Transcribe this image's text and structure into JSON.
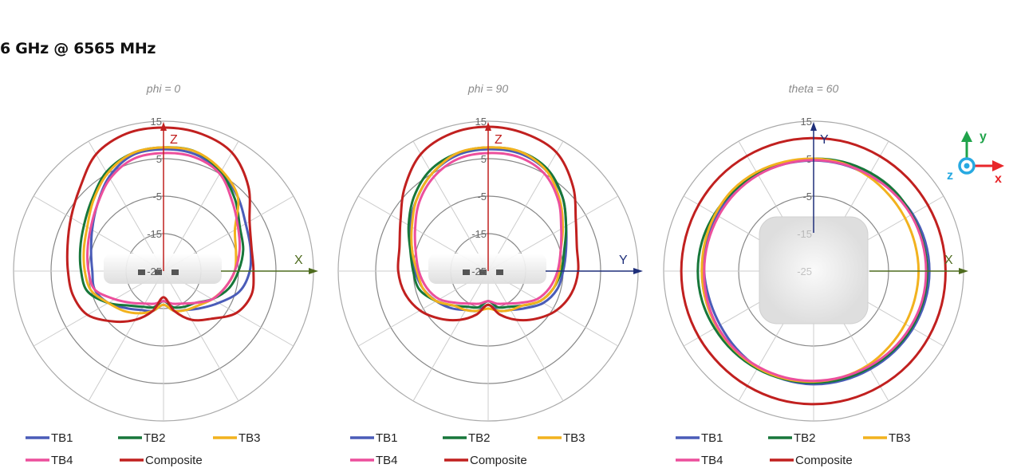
{
  "title": "6 GHz @ 6565 MHz",
  "colors": {
    "TB1": "#4a5cb8",
    "TB2": "#17773a",
    "TB3": "#f2b21e",
    "TB4": "#ec4f9c",
    "Composite": "#c1201f"
  },
  "axes_icon": {
    "labels": [
      "y",
      "x",
      "z"
    ],
    "colors": {
      "y": "#1fa34a",
      "x": "#e8262a",
      "z": "#27a9e1"
    }
  },
  "chart_data": [
    {
      "type": "polar-line",
      "title": "phi = 0",
      "radial_ticks": [
        "15",
        "5",
        "-5",
        "-15",
        "-25"
      ],
      "rlim": [
        -25,
        15
      ],
      "angle_step_deg": 15,
      "angle_reference": "Z axis, clockwise",
      "axis_labels": {
        "vertical": "Z",
        "horizontal": "X"
      },
      "axis_colors": {
        "vertical": "#c1201f",
        "horizontal": "#4e6b1e"
      },
      "grid": true,
      "legend_placement": "bottom",
      "series": [
        {
          "name": "TB1",
          "values": [
            7.5,
            7.3,
            5.5,
            3,
            0.3,
            -1,
            -2,
            -4,
            -8,
            -11,
            -13,
            -14,
            -16,
            -14,
            -13,
            -11,
            -8,
            -6,
            -6,
            -5,
            -3,
            0,
            4,
            7
          ]
        },
        {
          "name": "TB2",
          "values": [
            8,
            8,
            5.5,
            2,
            -1.5,
            -3,
            -5,
            -7,
            -10,
            -13,
            -14,
            -15,
            -17,
            -15,
            -14,
            -12,
            -8,
            -4,
            -3,
            -2,
            -0.5,
            2,
            5.5,
            7.5
          ]
        },
        {
          "name": "TB3",
          "values": [
            8,
            8,
            6,
            3,
            -3,
            -5,
            -6,
            -8,
            -10,
            -12,
            -13,
            -14,
            -16,
            -14,
            -12,
            -10,
            -8,
            -5,
            -4,
            -3,
            -1.5,
            1.5,
            5,
            7.5
          ]
        },
        {
          "name": "TB4",
          "values": [
            6.5,
            6.5,
            5,
            1,
            -2,
            -4,
            -6,
            -8,
            -10,
            -13,
            -15,
            -16,
            -17,
            -16,
            -15,
            -13,
            -10,
            -6,
            -5,
            -4,
            -2.5,
            0,
            3.5,
            6
          ]
        },
        {
          "name": "Composite",
          "values": [
            13.3,
            13,
            11.5,
            7,
            1.5,
            -0.7,
            -1,
            -0.7,
            -2.6,
            -7,
            -10,
            -14,
            -18,
            -14,
            -10,
            -6,
            -1.6,
            0,
            0.5,
            1.5,
            3.5,
            6.5,
            11,
            13
          ]
        }
      ]
    },
    {
      "type": "polar-line",
      "title": "phi = 90",
      "radial_ticks": [
        "15",
        "5",
        "-5",
        "-15",
        "-25"
      ],
      "rlim": [
        -25,
        15
      ],
      "angle_step_deg": 15,
      "angle_reference": "Z axis, clockwise",
      "axis_labels": {
        "vertical": "Z",
        "horizontal": "Y"
      },
      "axis_colors": {
        "vertical": "#c1201f",
        "horizontal": "#1f2f7a"
      },
      "grid": true,
      "legend_placement": "bottom",
      "series": [
        {
          "name": "TB1",
          "values": [
            7.5,
            7.5,
            6,
            3,
            -1,
            -3.5,
            -5,
            -6,
            -8,
            -11,
            -13,
            -14,
            -16,
            -14,
            -13,
            -11,
            -9,
            -7,
            -5.5,
            -4,
            -1,
            2,
            5,
            7
          ]
        },
        {
          "name": "TB2",
          "values": [
            8,
            8,
            6.5,
            3,
            -1,
            -4,
            -5.5,
            -7,
            -9,
            -12,
            -14,
            -15,
            -17,
            -15,
            -14,
            -12,
            -9,
            -6,
            -5,
            -3.5,
            -0.5,
            3,
            6,
            7.5
          ]
        },
        {
          "name": "TB3",
          "values": [
            8,
            8,
            6,
            2,
            -2,
            -5,
            -6,
            -7,
            -9,
            -12,
            -13,
            -14,
            -15,
            -14,
            -13,
            -12,
            -9,
            -7,
            -6,
            -4,
            -1.5,
            2,
            5,
            7.5
          ]
        },
        {
          "name": "TB4",
          "values": [
            6.5,
            6.5,
            5,
            1.5,
            -2.5,
            -5,
            -6.5,
            -8,
            -10,
            -13,
            -15,
            -16,
            -17,
            -16,
            -15,
            -13,
            -10,
            -8,
            -6.5,
            -5,
            -2.5,
            1,
            4,
            6
          ]
        },
        {
          "name": "Composite",
          "values": [
            13.5,
            13,
            11.5,
            7,
            2,
            -0.5,
            -1,
            -2,
            -4,
            -7,
            -10,
            -13,
            -16,
            -13,
            -10,
            -7,
            -4,
            -2,
            -1,
            -0.5,
            2,
            6.5,
            11,
            13
          ]
        }
      ]
    },
    {
      "type": "polar-line",
      "title": "theta = 60",
      "radial_ticks": [
        "15",
        "5",
        "-5",
        "-15",
        "-25"
      ],
      "rlim": [
        -25,
        15
      ],
      "angle_step_deg": 15,
      "angle_reference": "Y axis, clockwise",
      "axis_labels": {
        "vertical": "Y",
        "horizontal": "X"
      },
      "axis_colors": {
        "vertical": "#1f2f7a",
        "horizontal": "#4e6b1e"
      },
      "grid": true,
      "legend_placement": "bottom",
      "series": [
        {
          "name": "TB1",
          "values": [
            4.5,
            4.5,
            4.5,
            5,
            5.5,
            5.8,
            5.9,
            5.8,
            5.6,
            5.4,
            5.2,
            5.2,
            5.2,
            5,
            4.7,
            4.2,
            3.8,
            3.8,
            4.2,
            4.5,
            4.8,
            4.8,
            4.7,
            4.6
          ]
        },
        {
          "name": "TB2",
          "values": [
            5,
            5.2,
            5.3,
            5.4,
            5.2,
            5.2,
            5.3,
            5.3,
            5.2,
            5,
            4.8,
            4.8,
            4.8,
            4.9,
            5.1,
            5.3,
            5.5,
            5.8,
            5.9,
            5.8,
            5.5,
            5.2,
            5,
            5
          ]
        },
        {
          "name": "TB3",
          "values": [
            5,
            4.8,
            4.2,
            3.6,
            3.2,
            3,
            3,
            3,
            3.2,
            3.5,
            4,
            4.3,
            4.5,
            4.7,
            4.8,
            4.8,
            4.8,
            4.8,
            4.8,
            5,
            5.3,
            5.6,
            5.5,
            5.2
          ]
        },
        {
          "name": "TB4",
          "values": [
            4.6,
            4.6,
            4.6,
            4.8,
            5,
            5,
            5,
            5,
            4.8,
            4.6,
            4.4,
            4.3,
            4.3,
            4.4,
            4.5,
            4.6,
            4.6,
            4.4,
            4.2,
            4.2,
            4.3,
            4.5,
            4.6,
            4.6
          ]
        },
        {
          "name": "Composite",
          "values": [
            10.5,
            10.5,
            10.4,
            10.3,
            10.2,
            10.2,
            10.2,
            10.3,
            10.4,
            10.5,
            10.5,
            10.5,
            10.5,
            10.5,
            10.4,
            10.3,
            10.3,
            10.3,
            10.3,
            10.3,
            10.4,
            10.5,
            10.5,
            10.5
          ]
        }
      ]
    }
  ]
}
